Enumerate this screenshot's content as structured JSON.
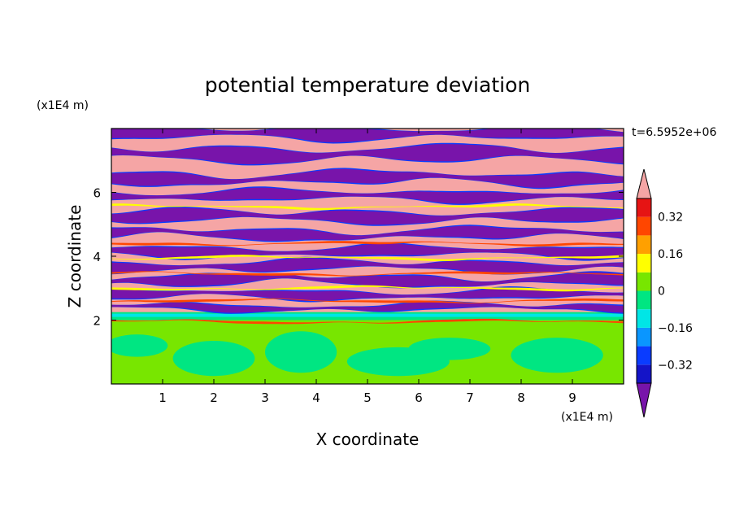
{
  "chart_data": {
    "type": "heatmap",
    "title": "potential temperature deviation",
    "xlabel": "X coordinate",
    "ylabel": "Z coordinate",
    "x_unit": "(x1E4 m)",
    "y_unit": "(x1E4 m)",
    "time_label": "t=6.5952e+06",
    "xlim": [
      0,
      10
    ],
    "ylim": [
      0,
      8
    ],
    "x_ticks": [
      1,
      2,
      3,
      4,
      5,
      6,
      7,
      8,
      9
    ],
    "y_ticks": [
      2,
      4,
      6
    ],
    "colorbar": {
      "levels": [
        -0.4,
        -0.32,
        -0.24,
        -0.16,
        -0.08,
        0,
        0.08,
        0.16,
        0.24,
        0.32,
        0.4
      ],
      "tick_labels": [
        "0.32",
        "0.16",
        "0",
        "−0.16",
        "−0.32"
      ],
      "tick_values": [
        0.32,
        0.16,
        0,
        -0.16,
        -0.32
      ],
      "colors_low_to_high": [
        "#1414c8",
        "#0a3cff",
        "#0a96ff",
        "#00e6e6",
        "#00e682",
        "#78e600",
        "#ffff00",
        "#ffa000",
        "#ff4600",
        "#e61414"
      ],
      "under_color": "#7814aa",
      "over_color": "#f5a5a5"
    },
    "colors": {
      "pink": "#f5a5a5",
      "purple": "#7814aa",
      "green": "#78e600",
      "teal": "#00e682",
      "cyan": "#00e6e6",
      "blue": "#0a3cff",
      "yellow": "#ffff00",
      "red": "#ff4600"
    }
  }
}
